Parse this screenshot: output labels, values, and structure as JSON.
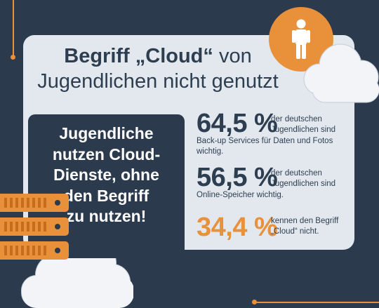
{
  "title": {
    "bold": "Begriff „Cloud“",
    "normal_tail": " von",
    "line2": "Jugendlichen nicht genutzt"
  },
  "highlight": {
    "lines": [
      "Jugendliche",
      "nutzen Cloud-",
      "Dienste, ohne",
      "den Begriff",
      "zu nutzen!"
    ]
  },
  "stats": [
    {
      "value": "64,5 %",
      "desc_lines": [
        "der deutschen",
        "Jugendlichen sind"
      ],
      "extra_lines": [
        "Back-up Services für Daten und Fotos",
        "wichtig."
      ]
    },
    {
      "value": "56,5 %",
      "desc_lines": [
        "der deutschen",
        "Jugendlichen sind"
      ],
      "extra_lines": [
        "Online-Speicher wichtig."
      ]
    },
    {
      "value": "34,4 %",
      "desc_lines": [
        "kennen den Begriff",
        "„Cloud“ nicht."
      ],
      "extra_lines": []
    }
  ],
  "icons": {
    "person": "person-icon",
    "cloud": "cloud-icon",
    "server": "server-icon"
  },
  "colors": {
    "background": "#2b3a4c",
    "card": "#e3e8ef",
    "accent": "#e8913a",
    "text": "#2d3e50"
  }
}
